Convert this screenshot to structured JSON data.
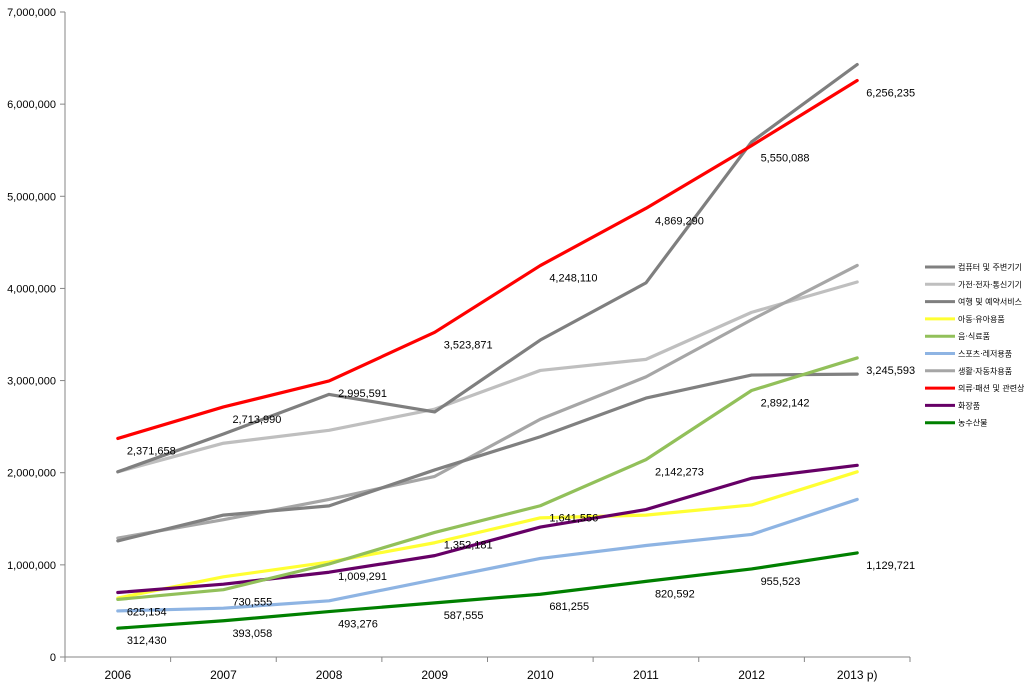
{
  "chart_data": {
    "type": "line",
    "title": "",
    "xlabel": "",
    "ylabel": "",
    "categories": [
      "2006",
      "2007",
      "2008",
      "2009",
      "2010",
      "2011",
      "2012",
      "2013 p)"
    ],
    "ylim": [
      0,
      7000000
    ],
    "yticks": [
      0,
      1000000,
      2000000,
      3000000,
      4000000,
      5000000,
      6000000,
      7000000
    ],
    "ytick_labels": [
      "0",
      "1,000,000",
      "2,000,000",
      "3,000,000",
      "4,000,000",
      "5,000,000",
      "6,000,000",
      "7,000,000"
    ],
    "grid": false,
    "legend_position": "right",
    "series": [
      {
        "name": "컴퓨터 및 주변기기",
        "color": "#808080",
        "values": [
          1260000,
          1540000,
          1640000,
          2030000,
          2390000,
          2810000,
          3060000,
          3070000
        ],
        "data_labels": null
      },
      {
        "name": "가전·전자·통신기기",
        "color": "#bfbfbf",
        "values": [
          2010000,
          2320000,
          2460000,
          2690000,
          3110000,
          3230000,
          3740000,
          4070000
        ],
        "data_labels": null
      },
      {
        "name": "여행 및 예약서비스",
        "color": "#7f7f7f",
        "values": [
          2010000,
          2420000,
          2850000,
          2660000,
          3440000,
          4060000,
          5590000,
          6430000
        ],
        "data_labels": null
      },
      {
        "name": "아동·유아용품",
        "color": "#ffff33",
        "values": [
          640000,
          870000,
          1030000,
          1240000,
          1510000,
          1540000,
          1650000,
          2010000
        ],
        "data_labels": null
      },
      {
        "name": "음·식료품",
        "color": "#92c05a",
        "values": [
          625154,
          730555,
          1009291,
          1352181,
          1641556,
          2142273,
          2892142,
          3245593
        ],
        "data_labels": [
          "625,154",
          "730,555",
          "1,009,291",
          "1,352,181",
          "1,641,556",
          "2,142,273",
          "2,892,142",
          "3,245,593"
        ]
      },
      {
        "name": "스포츠·레저용품",
        "color": "#8eb4e3",
        "values": [
          500000,
          530000,
          610000,
          840000,
          1070000,
          1210000,
          1330000,
          1710000
        ],
        "data_labels": null
      },
      {
        "name": "생활·자동차용품",
        "color": "#a6a6a6",
        "values": [
          1290000,
          1490000,
          1710000,
          1960000,
          2580000,
          3040000,
          3660000,
          4250000
        ],
        "data_labels": null
      },
      {
        "name": "의류·패션 및 관련상품",
        "color": "#ff0000",
        "values": [
          2371658,
          2713990,
          2995591,
          3523871,
          4248110,
          4869290,
          5550088,
          6256235
        ],
        "data_labels": [
          "2,371,658",
          "2,713,990",
          "2,995,591",
          "3,523,871",
          "4,248,110",
          "4,869,290",
          "5,550,088",
          "6,256,235"
        ]
      },
      {
        "name": "화장품",
        "color": "#660066",
        "values": [
          700000,
          790000,
          920000,
          1100000,
          1410000,
          1600000,
          1940000,
          2080000
        ],
        "data_labels": null
      },
      {
        "name": "농수산물",
        "color": "#008000",
        "values": [
          312430,
          393058,
          493276,
          587555,
          681255,
          820592,
          955523,
          1129721
        ],
        "data_labels": [
          "312,430",
          "393,058",
          "493,276",
          "587,555",
          "681,255",
          "820,592",
          "955,523",
          "1,129,721"
        ]
      }
    ]
  }
}
